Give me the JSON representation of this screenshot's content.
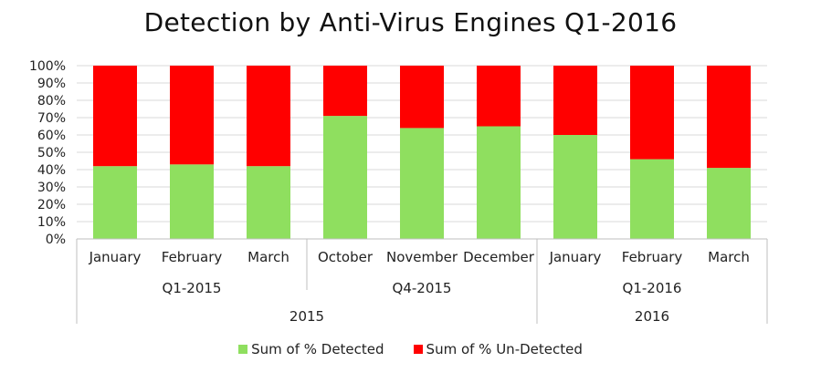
{
  "chart_data": {
    "type": "bar",
    "stacked": true,
    "title": "Detection by Anti-Virus Engines Q1-2016",
    "xlabel": "",
    "ylabel": "",
    "ylim": [
      0,
      100
    ],
    "y_ticks": [
      "0%",
      "10%",
      "20%",
      "30%",
      "40%",
      "50%",
      "60%",
      "70%",
      "80%",
      "90%",
      "100%"
    ],
    "categories": [
      "January",
      "February",
      "March",
      "October",
      "November",
      "December",
      "January",
      "February",
      "March"
    ],
    "quarters": [
      {
        "label": "Q1-2015",
        "span": [
          0,
          3
        ]
      },
      {
        "label": "Q4-2015",
        "span": [
          3,
          6
        ]
      },
      {
        "label": "Q1-2016",
        "span": [
          6,
          9
        ]
      }
    ],
    "years": [
      {
        "label": "2015",
        "span": [
          0,
          6
        ]
      },
      {
        "label": "2016",
        "span": [
          6,
          9
        ]
      }
    ],
    "series": [
      {
        "name": "Sum of % Detected",
        "color": "#8fdf5f",
        "values": [
          42,
          43,
          42,
          71,
          64,
          65,
          60,
          46,
          41
        ]
      },
      {
        "name": "Sum of % Un-Detected",
        "color": "#ff0000",
        "values": [
          58,
          57,
          58,
          29,
          36,
          35,
          40,
          54,
          59
        ]
      }
    ],
    "grid": true,
    "legend_position": "bottom"
  }
}
